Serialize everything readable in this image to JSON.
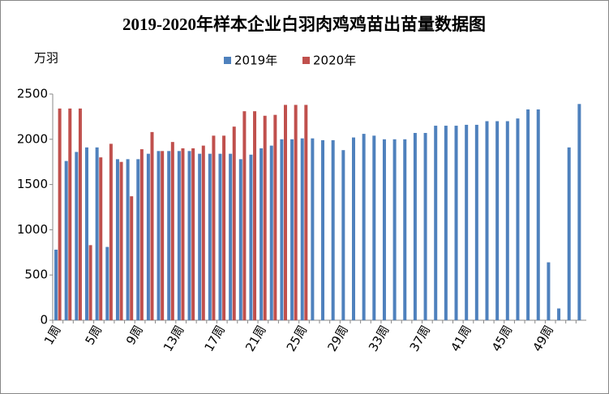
{
  "chart_data": {
    "type": "bar",
    "title": "2019-2020年样本企业白羽肉鸡鸡苗出苗量数据图",
    "y_label": "万羽",
    "categories": [
      "1周",
      null,
      null,
      null,
      "5周",
      null,
      null,
      null,
      "9周",
      null,
      null,
      null,
      "13周",
      null,
      null,
      null,
      "17周",
      null,
      null,
      null,
      "21周",
      null,
      null,
      null,
      "25周",
      null,
      null,
      null,
      "29周",
      null,
      null,
      null,
      "33周",
      null,
      null,
      null,
      "37周",
      null,
      null,
      null,
      "41周",
      null,
      null,
      null,
      "45周",
      null,
      null,
      null,
      "49周",
      null,
      null,
      null
    ],
    "series": [
      {
        "name": "2019年",
        "color": "#4f81bd",
        "values": [
          780,
          1760,
          1860,
          1910,
          1910,
          810,
          1780,
          1780,
          1780,
          1840,
          1870,
          1870,
          1870,
          1870,
          1840,
          1840,
          1840,
          1840,
          1780,
          1830,
          1900,
          1930,
          2000,
          2000,
          2010,
          2010,
          1990,
          1990,
          1880,
          2020,
          2060,
          2040,
          2000,
          2000,
          2000,
          2070,
          2070,
          2150,
          2150,
          2150,
          2160,
          2160,
          2200,
          2200,
          2200,
          2230,
          2330,
          2330,
          640,
          130,
          1910,
          2390
        ]
      },
      {
        "name": "2020年",
        "color": "#c0504d",
        "values": [
          2340,
          2340,
          2340,
          830,
          1800,
          1950,
          1750,
          1370,
          1890,
          2080,
          1870,
          1970,
          1900,
          1900,
          1930,
          2040,
          2040,
          2140,
          2310,
          2310,
          2260,
          2270,
          2380,
          2380,
          2380,
          null,
          null,
          null,
          null,
          null,
          null,
          null,
          null,
          null,
          null,
          null,
          null,
          null,
          null,
          null,
          null,
          null,
          null,
          null,
          null,
          null,
          null,
          null,
          null,
          null,
          null,
          null
        ]
      }
    ],
    "ylim": [
      0,
      2500
    ],
    "yticks": [
      0,
      500,
      1000,
      1500,
      2000,
      2500
    ],
    "grid": false,
    "legend": "top"
  }
}
